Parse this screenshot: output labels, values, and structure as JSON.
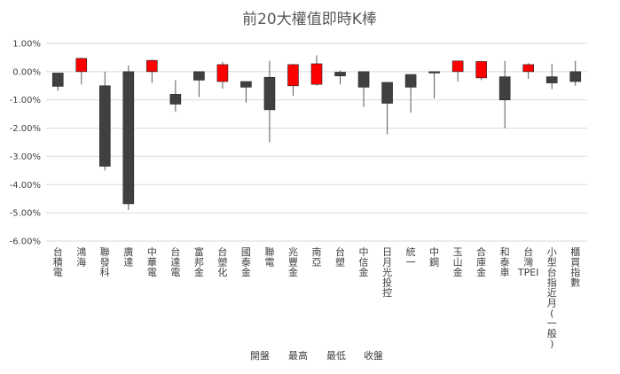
{
  "chart_data": {
    "type": "candlestick",
    "title": "前20大權值即時K棒",
    "ylim": [
      -6,
      1
    ],
    "y_ticks": [
      "1.00%",
      "0.00%",
      "-1.00%",
      "-2.00%",
      "-3.00%",
      "-4.00%",
      "-5.00%",
      "-6.00%"
    ],
    "y_tick_values": [
      1,
      0,
      -1,
      -2,
      -3,
      -4,
      -5,
      -6
    ],
    "colors": {
      "up": "#ff0000",
      "down": "#404040",
      "wick": "#595959",
      "grid": "#d9d9d9"
    },
    "legend": [
      "開盤",
      "最高",
      "最低",
      "收盤"
    ],
    "candles": [
      {
        "name": "台積電",
        "open": -0.05,
        "high": -0.05,
        "low": -0.68,
        "close": -0.52
      },
      {
        "name": "鴻海",
        "open": 0.0,
        "high": 0.5,
        "low": -0.45,
        "close": 0.47
      },
      {
        "name": "聯發科",
        "open": -0.5,
        "high": 0.0,
        "low": -3.5,
        "close": -3.35
      },
      {
        "name": "廣達",
        "open": 0.0,
        "high": 0.22,
        "low": -4.9,
        "close": -4.68
      },
      {
        "name": "中華電",
        "open": 0.0,
        "high": 0.43,
        "low": -0.4,
        "close": 0.4
      },
      {
        "name": "台達電",
        "open": -0.8,
        "high": -0.3,
        "low": -1.42,
        "close": -1.15
      },
      {
        "name": "富邦金",
        "open": 0.0,
        "high": 0.0,
        "low": -0.9,
        "close": -0.3
      },
      {
        "name": "台塑化",
        "open": -0.35,
        "high": 0.35,
        "low": -0.6,
        "close": 0.25
      },
      {
        "name": "國泰金",
        "open": -0.35,
        "high": -0.35,
        "low": -1.1,
        "close": -0.55
      },
      {
        "name": "聯電",
        "open": -0.2,
        "high": 0.38,
        "low": -2.5,
        "close": -1.35
      },
      {
        "name": "兆豐金",
        "open": -0.5,
        "high": 0.28,
        "low": -0.85,
        "close": 0.25
      },
      {
        "name": "南亞",
        "open": -0.45,
        "high": 0.58,
        "low": -0.5,
        "close": 0.28
      },
      {
        "name": "台塑",
        "open": -0.02,
        "high": 0.05,
        "low": -0.45,
        "close": -0.15
      },
      {
        "name": "中信金",
        "open": 0.0,
        "high": 0.0,
        "low": -1.25,
        "close": -0.55
      },
      {
        "name": "日月光投控",
        "open": -0.38,
        "high": -0.38,
        "low": -2.22,
        "close": -1.12
      },
      {
        "name": "統一",
        "open": -0.1,
        "high": -0.1,
        "low": -1.45,
        "close": -0.55
      },
      {
        "name": "中鋼",
        "open": 0.0,
        "high": 0.0,
        "low": -0.95,
        "close": -0.04
      },
      {
        "name": "玉山金",
        "open": 0.0,
        "high": 0.38,
        "low": -0.35,
        "close": 0.38
      },
      {
        "name": "合庫金",
        "open": -0.22,
        "high": 0.38,
        "low": -0.3,
        "close": 0.36
      },
      {
        "name": "和泰車",
        "open": -0.18,
        "high": 0.38,
        "low": -2.0,
        "close": -1.0
      },
      {
        "name": "台灣TPEI",
        "open": 0.0,
        "high": 0.3,
        "low": -0.25,
        "close": 0.25
      },
      {
        "name": "小型台指近月(一般)",
        "open": -0.18,
        "high": 0.28,
        "low": -0.62,
        "close": -0.4
      },
      {
        "name": "櫃買指數",
        "open": 0.0,
        "high": 0.38,
        "low": -0.5,
        "close": -0.35
      }
    ]
  }
}
